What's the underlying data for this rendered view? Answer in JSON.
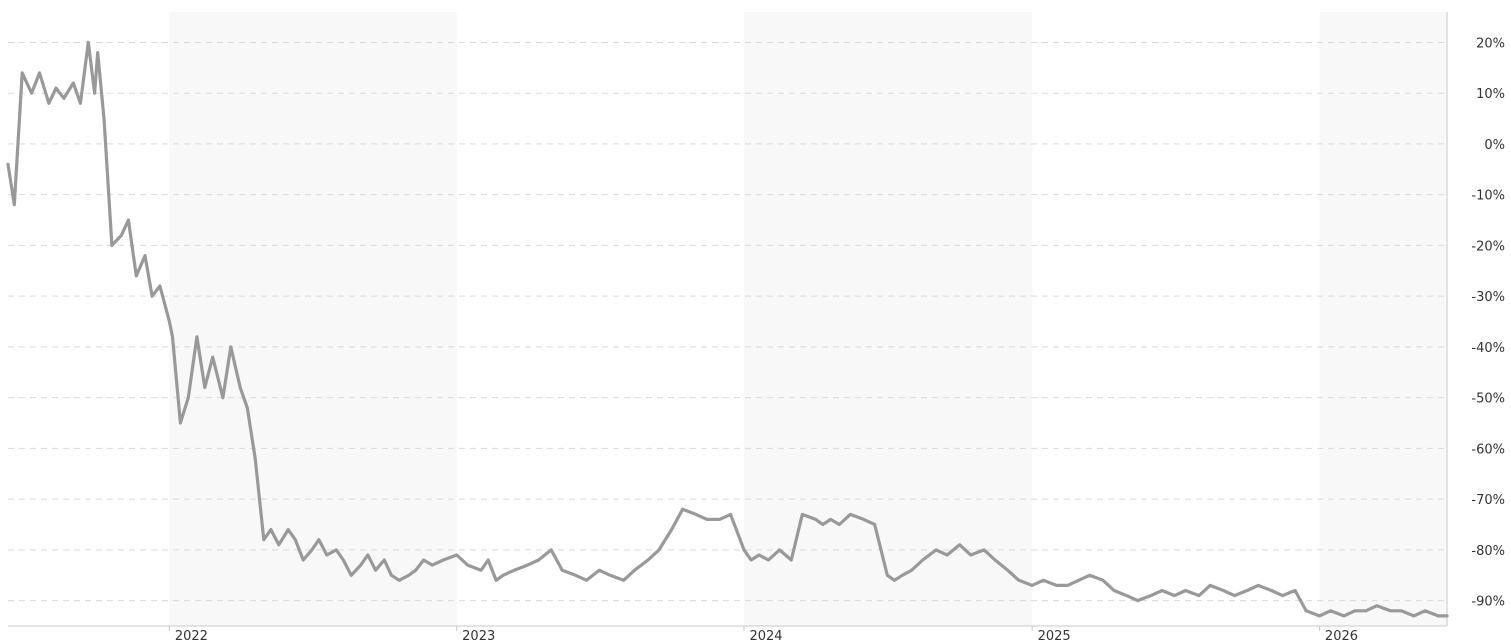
{
  "chart_data": {
    "type": "line",
    "title": "",
    "xlabel": "",
    "ylabel": "",
    "x_ticks": [
      "2022",
      "2023",
      "2024",
      "2025",
      "2026"
    ],
    "y_ticks": [
      "20%",
      "10%",
      "0%",
      "-10%",
      "-20%",
      "-30%",
      "-40%",
      "-50%",
      "-60%",
      "-70%",
      "-80%",
      "-90%"
    ],
    "ylim": [
      -95,
      26
    ],
    "xlim": [
      "2021-06-10",
      "2026-06-12"
    ],
    "grid": true,
    "alternating_year_bands": true,
    "line_color": "#999999",
    "band_color": "#f8f8f8",
    "series": [
      {
        "x": [
          "2021-06-10",
          "2021-06-18",
          "2021-06-28",
          "2021-07-10",
          "2021-07-20",
          "2021-08-01",
          "2021-08-10",
          "2021-08-20",
          "2021-09-01",
          "2021-09-10",
          "2021-09-20",
          "2021-09-28",
          "2021-10-02",
          "2021-10-10",
          "2021-10-20",
          "2021-11-01",
          "2021-11-10",
          "2021-11-20",
          "2021-12-01",
          "2021-12-10",
          "2021-12-20",
          "2022-01-01",
          "2022-01-05",
          "2022-01-15",
          "2022-01-25",
          "2022-02-05",
          "2022-02-15",
          "2022-02-25",
          "2022-03-10",
          "2022-03-20",
          "2022-04-01",
          "2022-04-10",
          "2022-04-20",
          "2022-05-01",
          "2022-05-10",
          "2022-05-20",
          "2022-06-01",
          "2022-06-10",
          "2022-06-20",
          "2022-07-01",
          "2022-07-10",
          "2022-07-20",
          "2022-08-01",
          "2022-08-10",
          "2022-08-20",
          "2022-09-01",
          "2022-09-10",
          "2022-09-20",
          "2022-10-01",
          "2022-10-10",
          "2022-10-20",
          "2022-11-01",
          "2022-11-10",
          "2022-11-20",
          "2022-12-01",
          "2022-12-15",
          "2023-01-01",
          "2023-01-15",
          "2023-02-01",
          "2023-02-10",
          "2023-02-20",
          "2023-03-01",
          "2023-03-15",
          "2023-04-01",
          "2023-04-15",
          "2023-05-01",
          "2023-05-15",
          "2023-06-01",
          "2023-06-15",
          "2023-07-01",
          "2023-07-15",
          "2023-08-01",
          "2023-08-15",
          "2023-09-01",
          "2023-09-15",
          "2023-10-01",
          "2023-10-15",
          "2023-11-01",
          "2023-11-15",
          "2023-12-01",
          "2023-12-15",
          "2024-01-01",
          "2024-01-10",
          "2024-01-20",
          "2024-02-01",
          "2024-02-15",
          "2024-03-01",
          "2024-03-15",
          "2024-04-01",
          "2024-04-10",
          "2024-04-20",
          "2024-05-01",
          "2024-05-15",
          "2024-06-01",
          "2024-06-15",
          "2024-07-01",
          "2024-07-10",
          "2024-07-20",
          "2024-08-01",
          "2024-08-15",
          "2024-09-01",
          "2024-09-15",
          "2024-10-01",
          "2024-10-15",
          "2024-11-01",
          "2024-11-15",
          "2024-12-01",
          "2024-12-15",
          "2025-01-01",
          "2025-01-15",
          "2025-02-01",
          "2025-02-15",
          "2025-03-01",
          "2025-03-15",
          "2025-04-01",
          "2025-04-15",
          "2025-05-01",
          "2025-05-15",
          "2025-06-01",
          "2025-06-15",
          "2025-07-01",
          "2025-07-15",
          "2025-08-01",
          "2025-08-15",
          "2025-09-01",
          "2025-09-15",
          "2025-10-01",
          "2025-10-15",
          "2025-11-01",
          "2025-11-15",
          "2025-12-01",
          "2025-12-15",
          "2026-01-01",
          "2026-01-15",
          "2026-02-01",
          "2026-02-15",
          "2026-03-01",
          "2026-03-15",
          "2026-04-01",
          "2026-04-15",
          "2026-05-01",
          "2026-05-15",
          "2026-06-01",
          "2026-06-12"
        ],
        "values": [
          -4,
          -12,
          14,
          10,
          14,
          8,
          11,
          9,
          12,
          8,
          20,
          10,
          18,
          5,
          -20,
          -18,
          -15,
          -26,
          -22,
          -30,
          -28,
          -35,
          -38,
          -55,
          -50,
          -38,
          -48,
          -42,
          -50,
          -40,
          -48,
          -52,
          -62,
          -78,
          -76,
          -79,
          -76,
          -78,
          -82,
          -80,
          -78,
          -81,
          -80,
          -82,
          -85,
          -83,
          -81,
          -84,
          -82,
          -85,
          -86,
          -85,
          -84,
          -82,
          -83,
          -82,
          -81,
          -83,
          -84,
          -82,
          -86,
          -85,
          -84,
          -83,
          -82,
          -80,
          -84,
          -85,
          -86,
          -84,
          -85,
          -86,
          -84,
          -82,
          -80,
          -76,
          -72,
          -73,
          -74,
          -74,
          -73,
          -80,
          -82,
          -81,
          -82,
          -80,
          -82,
          -73,
          -74,
          -75,
          -74,
          -75,
          -73,
          -74,
          -75,
          -85,
          -86,
          -85,
          -84,
          -82,
          -80,
          -81,
          -79,
          -81,
          -80,
          -82,
          -84,
          -86,
          -87,
          -86,
          -87,
          -87,
          -86,
          -85,
          -86,
          -88,
          -89,
          -90,
          -89,
          -88,
          -89,
          -88,
          -89,
          -87,
          -88,
          -89,
          -88,
          -87,
          -88,
          -89,
          -88,
          -92,
          -93,
          -92,
          -93,
          -92,
          -92,
          -91,
          -92,
          -92,
          -93,
          -92,
          -93,
          -93
        ]
      }
    ]
  }
}
